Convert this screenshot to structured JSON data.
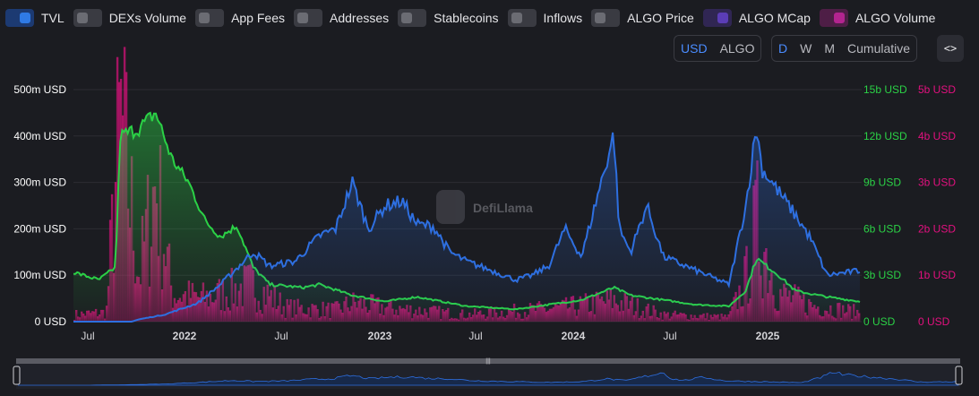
{
  "toggles": [
    {
      "label": "TVL",
      "on": true
    },
    {
      "label": "DEXs Volume",
      "on": false
    },
    {
      "label": "App Fees",
      "on": false
    },
    {
      "label": "Addresses",
      "on": false
    },
    {
      "label": "Stablecoins",
      "on": false
    },
    {
      "label": "Inflows",
      "on": false
    },
    {
      "label": "ALGO Price",
      "on": false
    },
    {
      "label": "ALGO MCap",
      "on": true,
      "color": "#5b3db6"
    },
    {
      "label": "ALGO Volume",
      "on": true,
      "color": "#b3248f"
    }
  ],
  "currency": {
    "options": [
      "USD",
      "ALGO"
    ],
    "selected": "USD"
  },
  "interval": {
    "options": [
      "D",
      "W",
      "M",
      "Cumulative"
    ],
    "selected": "D"
  },
  "embed_label": "<>",
  "watermark": "DefiLlama",
  "colors": {
    "tvl": "#2e6fe0",
    "mcap": "#2bd146",
    "volume": "#e3107f",
    "bg": "#1b1c21"
  },
  "chart_data": {
    "type": "line",
    "x_tick_labels": [
      "Jul",
      "2022",
      "Jul",
      "2023",
      "Jul",
      "2024",
      "Jul",
      "2025"
    ],
    "x_range": [
      "2021-06-15",
      "2025-06-15"
    ],
    "y_left": {
      "labels": [
        "0 USD",
        "100m USD",
        "200m USD",
        "300m USD",
        "400m USD",
        "500m USD"
      ],
      "ylim": [
        0,
        500000000
      ],
      "color": "#ffffff"
    },
    "y_right1": {
      "labels": [
        "0 USD",
        "3b USD",
        "6b USD",
        "9b USD",
        "12b USD",
        "15b USD"
      ],
      "ylim": [
        0,
        15000000000
      ],
      "color": "#2bd146"
    },
    "y_right2": {
      "labels": [
        "0 USD",
        "1b USD",
        "2b USD",
        "3b USD",
        "4b USD",
        "5b USD"
      ],
      "ylim": [
        0,
        5000000000
      ],
      "color": "#e3107f"
    },
    "grid": true,
    "series": [
      {
        "name": "TVL",
        "axis": "left",
        "color": "#2e6fe0",
        "points": [
          [
            "2021-06-15",
            0
          ],
          [
            "2021-10-01",
            0
          ],
          [
            "2021-10-15",
            5
          ],
          [
            "2021-12-01",
            15
          ],
          [
            "2022-02-01",
            40
          ],
          [
            "2022-03-15",
            80
          ],
          [
            "2022-05-15",
            150
          ],
          [
            "2022-06-15",
            120
          ],
          [
            "2022-08-01",
            130
          ],
          [
            "2022-09-15",
            185
          ],
          [
            "2022-10-15",
            200
          ],
          [
            "2022-11-15",
            300
          ],
          [
            "2022-12-15",
            200
          ],
          [
            "2023-01-15",
            250
          ],
          [
            "2023-02-15",
            260
          ],
          [
            "2023-03-15",
            210
          ],
          [
            "2023-04-15",
            205
          ],
          [
            "2023-05-15",
            150
          ],
          [
            "2023-06-15",
            130
          ],
          [
            "2023-08-01",
            110
          ],
          [
            "2023-09-15",
            90
          ],
          [
            "2023-10-15",
            100
          ],
          [
            "2023-11-15",
            120
          ],
          [
            "2023-12-15",
            200
          ],
          [
            "2024-01-15",
            140
          ],
          [
            "2024-03-15",
            405
          ],
          [
            "2024-03-25",
            200
          ],
          [
            "2024-04-15",
            150
          ],
          [
            "2024-05-15",
            250
          ],
          [
            "2024-06-15",
            140
          ],
          [
            "2024-08-15",
            110
          ],
          [
            "2024-10-15",
            80
          ],
          [
            "2024-11-15",
            250
          ],
          [
            "2024-12-05",
            420
          ],
          [
            "2024-12-15",
            330
          ],
          [
            "2025-01-15",
            280
          ],
          [
            "2025-02-15",
            230
          ],
          [
            "2025-03-15",
            180
          ],
          [
            "2025-04-15",
            100
          ],
          [
            "2025-06-15",
            110
          ]
        ]
      },
      {
        "name": "ALGO MCap",
        "axis": "right1",
        "color": "#2bd146",
        "points": [
          [
            "2021-06-15",
            3.2
          ],
          [
            "2021-08-01",
            2.7
          ],
          [
            "2021-09-01",
            3.5
          ],
          [
            "2021-09-10",
            12
          ],
          [
            "2021-10-15",
            12.5
          ],
          [
            "2021-11-15",
            13.5
          ],
          [
            "2021-12-15",
            10.5
          ],
          [
            "2022-01-15",
            9
          ],
          [
            "2022-02-15",
            6.5
          ],
          [
            "2022-03-15",
            5.5
          ],
          [
            "2022-04-15",
            6.2
          ],
          [
            "2022-05-15",
            3.5
          ],
          [
            "2022-06-15",
            2.4
          ],
          [
            "2022-08-15",
            2.2
          ],
          [
            "2022-09-15",
            2.4
          ],
          [
            "2022-11-15",
            1.7
          ],
          [
            "2023-01-15",
            1.3
          ],
          [
            "2023-03-15",
            1.6
          ],
          [
            "2023-04-15",
            1.4
          ],
          [
            "2023-06-15",
            1.0
          ],
          [
            "2023-09-15",
            0.8
          ],
          [
            "2023-11-15",
            1.1
          ],
          [
            "2024-01-15",
            1.4
          ],
          [
            "2024-03-15",
            2.2
          ],
          [
            "2024-04-15",
            1.7
          ],
          [
            "2024-06-15",
            1.4
          ],
          [
            "2024-08-15",
            1.1
          ],
          [
            "2024-10-15",
            1.0
          ],
          [
            "2024-11-15",
            2.0
          ],
          [
            "2024-12-05",
            4.1
          ],
          [
            "2025-01-15",
            3.0
          ],
          [
            "2025-02-15",
            2.0
          ],
          [
            "2025-03-15",
            1.8
          ],
          [
            "2025-04-15",
            1.6
          ],
          [
            "2025-06-15",
            1.3
          ]
        ]
      },
      {
        "name": "ALGO Volume",
        "axis": "right2",
        "color": "#e3107f",
        "points": [
          [
            "2021-06-15",
            0.15
          ],
          [
            "2021-08-15",
            0.2
          ],
          [
            "2021-09-10",
            4.4
          ],
          [
            "2021-10-15",
            1.0
          ],
          [
            "2021-11-15",
            3.0
          ],
          [
            "2021-12-15",
            0.6
          ],
          [
            "2022-02-15",
            0.5
          ],
          [
            "2022-05-15",
            0.8
          ],
          [
            "2022-07-15",
            0.3
          ],
          [
            "2022-10-15",
            0.25
          ],
          [
            "2022-11-15",
            0.4
          ],
          [
            "2023-01-15",
            0.3
          ],
          [
            "2023-06-15",
            0.15
          ],
          [
            "2023-12-15",
            0.3
          ],
          [
            "2024-03-15",
            0.45
          ],
          [
            "2024-06-15",
            0.15
          ],
          [
            "2024-10-15",
            0.1
          ],
          [
            "2024-11-15",
            0.9
          ],
          [
            "2024-12-05",
            2.1
          ],
          [
            "2025-01-15",
            0.6
          ],
          [
            "2025-03-15",
            0.35
          ],
          [
            "2025-06-15",
            0.2
          ]
        ]
      }
    ]
  }
}
